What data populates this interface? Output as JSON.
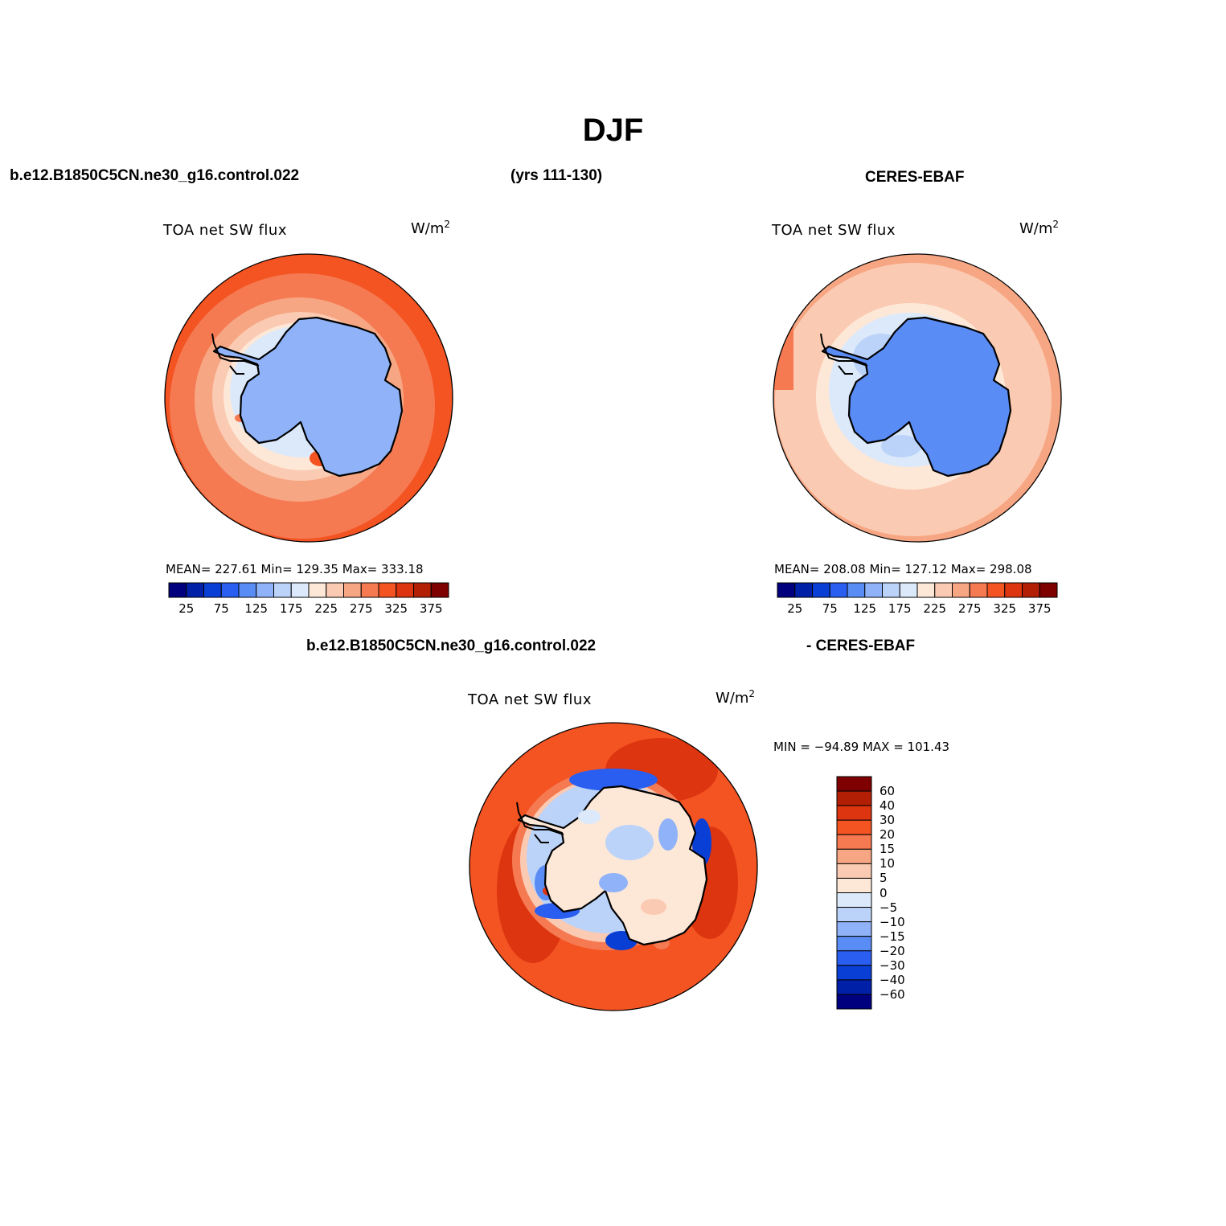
{
  "title": "DJF",
  "header": {
    "case_name": "b.e12.B1850C5CN.ne30_g16.control.022",
    "years": "(yrs 111-130)",
    "obs_name": "CERES-EBAF"
  },
  "diff_header": {
    "case_name": "b.e12.B1850C5CN.ne30_g16.control.022",
    "obs_suffix": "- CERES-EBAF"
  },
  "panels": [
    {
      "variable": "TOA net SW flux",
      "units": "W/m",
      "units_exp": "2",
      "stats": "MEAN= 227.61   Min= 129.35   Max= 333.18"
    },
    {
      "variable": "TOA net SW flux",
      "units": "W/m",
      "units_exp": "2",
      "stats": "MEAN= 208.08   Min= 127.12   Max= 298.08"
    },
    {
      "variable": "TOA net SW flux",
      "units": "W/m",
      "units_exp": "2",
      "stats": "MIN = −94.89  MAX = 101.43"
    }
  ],
  "main_colorbar": {
    "colors": [
      "#00007f",
      "#0020a8",
      "#0a3fd6",
      "#2a5ef0",
      "#5a8cf5",
      "#8fb2f8",
      "#bcd3f9",
      "#dce9fa",
      "#fde8d8",
      "#fbcab2",
      "#f7a683",
      "#f57a52",
      "#f45322",
      "#dc3510",
      "#b31f05",
      "#7f0000"
    ],
    "labels": [
      "25",
      "75",
      "125",
      "175",
      "225",
      "275",
      "325",
      "375"
    ]
  },
  "diff_colorbar": {
    "colors": [
      "#7f0000",
      "#b31f05",
      "#dc3510",
      "#f45322",
      "#f57a52",
      "#f7a683",
      "#fbcab2",
      "#fde8d8",
      "#dce9fa",
      "#bcd3f9",
      "#8fb2f8",
      "#5a8cf5",
      "#2a5ef0",
      "#0a3fd6",
      "#0020a8",
      "#00007f"
    ],
    "labels": [
      "60",
      "40",
      "30",
      "20",
      "15",
      "10",
      "5",
      "0",
      "−5",
      "−10",
      "−15",
      "−20",
      "−30",
      "−40",
      "−60"
    ]
  }
}
